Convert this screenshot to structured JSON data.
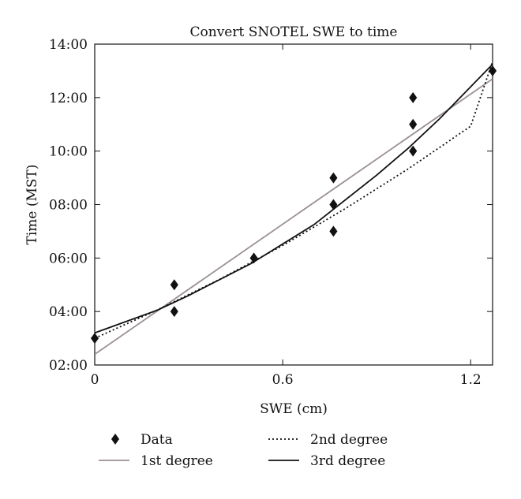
{
  "chart_data": {
    "type": "scatter",
    "title": "Convert SNOTEL SWE to time",
    "xlabel": "SWE (cm)",
    "ylabel": "Time (MST)",
    "xlim": [
      0,
      1.27
    ],
    "ylim": [
      2,
      14
    ],
    "x_ticks": [
      0,
      0.6,
      1.2
    ],
    "x_tick_labels": [
      "0",
      "0.6",
      "1.2"
    ],
    "y_ticks": [
      2,
      4,
      6,
      8,
      10,
      12,
      14
    ],
    "y_tick_labels": [
      "02:00",
      "04:00",
      "06:00",
      "08:00",
      "10:00",
      "12:00",
      "14:00"
    ],
    "grid": false,
    "legend_position": "bottom",
    "series": [
      {
        "name": "Data",
        "kind": "points",
        "marker": "diamond",
        "color": "#111111",
        "points": [
          [
            0,
            3
          ],
          [
            0.254,
            5
          ],
          [
            0.254,
            4
          ],
          [
            0.508,
            6
          ],
          [
            0.762,
            9
          ],
          [
            0.762,
            8
          ],
          [
            0.762,
            7
          ],
          [
            1.016,
            12
          ],
          [
            1.016,
            11
          ],
          [
            1.016,
            10
          ],
          [
            1.27,
            13
          ]
        ]
      },
      {
        "name": "1st degree",
        "kind": "fit",
        "style": "solid",
        "color": "#9a8f8f",
        "points": [
          [
            0,
            2.4
          ],
          [
            1.27,
            12.7
          ]
        ]
      },
      {
        "name": "2nd degree",
        "kind": "fit",
        "style": "dotted",
        "color": "#111111",
        "points": [
          [
            0,
            3.0
          ],
          [
            0.2,
            4.06
          ],
          [
            0.4,
            5.21
          ],
          [
            0.6,
            6.47
          ],
          [
            0.8,
            7.85
          ],
          [
            1.0,
            9.33
          ],
          [
            1.2,
            10.93
          ],
          [
            1.27,
            13.35
          ]
        ]
      },
      {
        "name": "3rd degree",
        "kind": "fit",
        "style": "solid",
        "color": "#111111",
        "points": [
          [
            0,
            3.2
          ],
          [
            0.2,
            4.05
          ],
          [
            0.3,
            4.6
          ],
          [
            0.5,
            5.8
          ],
          [
            0.7,
            7.25
          ],
          [
            0.9,
            9.1
          ],
          [
            1.0,
            10.1
          ],
          [
            1.1,
            11.2
          ],
          [
            1.27,
            13.25
          ]
        ]
      }
    ]
  }
}
